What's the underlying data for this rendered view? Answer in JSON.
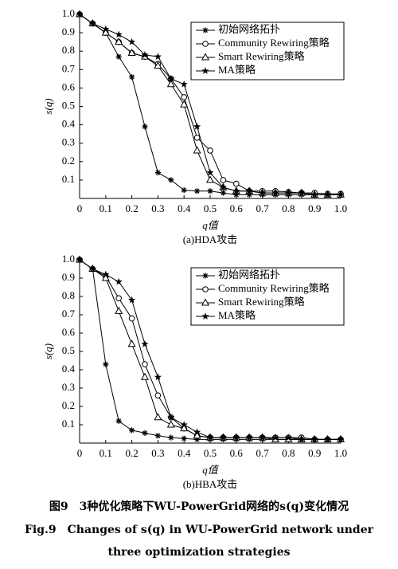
{
  "chart_data": [
    {
      "type": "line",
      "title": "(a)HDA攻击",
      "xlabel": "q值",
      "ylabel": "s(q)",
      "x": [
        0,
        0.05,
        0.1,
        0.15,
        0.2,
        0.25,
        0.3,
        0.35,
        0.4,
        0.45,
        0.5,
        0.55,
        0.6,
        0.65,
        0.7,
        0.75,
        0.8,
        0.85,
        0.9,
        0.95,
        1
      ],
      "xlim": [
        0,
        1
      ],
      "ylim": [
        0,
        1
      ],
      "xticks": [
        0,
        0.1,
        0.2,
        0.3,
        0.4,
        0.5,
        0.6,
        0.7,
        0.8,
        0.9,
        {
          "value": 1,
          "label": "1.0"
        }
      ],
      "yticks": [
        0.1,
        0.2,
        0.3,
        0.4,
        0.5,
        0.6,
        0.7,
        0.8,
        0.9,
        {
          "value": 1,
          "label": "1.0"
        }
      ],
      "legend": "upper right",
      "series": [
        {
          "name": "初始网络拓扑",
          "color": "#000000",
          "marker": "asterisk",
          "values": [
            1.0,
            0.95,
            0.9,
            0.77,
            0.66,
            0.39,
            0.14,
            0.1,
            0.045,
            0.04,
            0.04,
            0.03,
            0.02,
            0.02,
            0.02,
            0.02,
            0.02,
            0.02,
            0.02,
            0.02,
            0.02
          ]
        },
        {
          "name": "Community Rewiring策略",
          "color": "#000000",
          "marker": "circle",
          "values": [
            1.0,
            0.95,
            0.9,
            0.85,
            0.79,
            0.77,
            0.73,
            0.65,
            0.55,
            0.33,
            0.26,
            0.1,
            0.08,
            0.04,
            0.04,
            0.04,
            0.035,
            0.03,
            0.03,
            0.025,
            0.025
          ]
        },
        {
          "name": "Smart Rewiring策略",
          "color": "#000000",
          "marker": "triangle",
          "values": [
            1.0,
            0.95,
            0.9,
            0.85,
            0.79,
            0.77,
            0.72,
            0.62,
            0.51,
            0.26,
            0.1,
            0.06,
            0.04,
            0.04,
            0.03,
            0.03,
            0.03,
            0.03,
            0.02,
            0.02,
            0.02
          ]
        },
        {
          "name": "MA策略",
          "color": "#000000",
          "marker": "star",
          "values": [
            1.0,
            0.95,
            0.92,
            0.89,
            0.85,
            0.78,
            0.77,
            0.65,
            0.62,
            0.39,
            0.14,
            0.06,
            0.04,
            0.04,
            0.03,
            0.03,
            0.03,
            0.03,
            0.02,
            0.02,
            0.02
          ]
        }
      ]
    },
    {
      "type": "line",
      "title": "(b)HBA攻击",
      "xlabel": "q值",
      "ylabel": "s(q)",
      "x": [
        0,
        0.05,
        0.1,
        0.15,
        0.2,
        0.25,
        0.3,
        0.35,
        0.4,
        0.45,
        0.5,
        0.55,
        0.6,
        0.65,
        0.7,
        0.75,
        0.8,
        0.85,
        0.9,
        0.95,
        1
      ],
      "xlim": [
        0,
        1
      ],
      "ylim": [
        0,
        1
      ],
      "xticks": [
        0,
        0.1,
        0.2,
        0.3,
        0.4,
        0.5,
        0.6,
        0.7,
        0.8,
        0.9,
        {
          "value": 1,
          "label": "1.0"
        }
      ],
      "yticks": [
        0.1,
        0.2,
        0.3,
        0.4,
        0.5,
        0.6,
        0.7,
        0.8,
        0.9,
        {
          "value": 1,
          "label": "1.0"
        }
      ],
      "legend": "upper right",
      "series": [
        {
          "name": "初始网络拓扑",
          "color": "#000000",
          "marker": "asterisk",
          "values": [
            1.0,
            0.95,
            0.43,
            0.12,
            0.07,
            0.055,
            0.04,
            0.03,
            0.025,
            0.02,
            0.02,
            0.02,
            0.02,
            0.02,
            0.02,
            0.02,
            0.02,
            0.02,
            0.02,
            0.02,
            0.02
          ]
        },
        {
          "name": "Community Rewiring策略",
          "color": "#000000",
          "marker": "circle",
          "values": [
            1.0,
            0.95,
            0.91,
            0.79,
            0.68,
            0.43,
            0.26,
            0.14,
            0.08,
            0.04,
            0.03,
            0.03,
            0.03,
            0.03,
            0.03,
            0.03,
            0.03,
            0.03,
            0.02,
            0.02,
            0.02
          ]
        },
        {
          "name": "Smart Rewiring策略",
          "color": "#000000",
          "marker": "triangle",
          "values": [
            1.0,
            0.95,
            0.9,
            0.72,
            0.54,
            0.36,
            0.14,
            0.1,
            0.08,
            0.04,
            0.03,
            0.03,
            0.03,
            0.03,
            0.03,
            0.02,
            0.02,
            0.02,
            0.02,
            0.02,
            0.02
          ]
        },
        {
          "name": "MA策略",
          "color": "#000000",
          "marker": "star",
          "values": [
            1.0,
            0.95,
            0.92,
            0.88,
            0.78,
            0.54,
            0.36,
            0.14,
            0.1,
            0.06,
            0.03,
            0.03,
            0.03,
            0.03,
            0.03,
            0.03,
            0.03,
            0.02,
            0.02,
            0.02,
            0.02
          ]
        }
      ]
    }
  ],
  "caption": {
    "zh": "图9　3种优化策略下WU-PowerGrid网络的s(q)变化情况",
    "en_line1": "Fig.9　Changes of s(q) in WU-PowerGrid network under",
    "en_line2": "three optimization strategies"
  }
}
